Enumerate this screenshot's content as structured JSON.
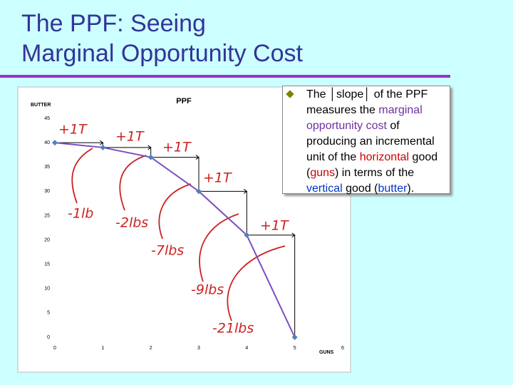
{
  "title_lines": [
    "The PPF: Seeing",
    "Marginal Opportunity Cost"
  ],
  "bullet": {
    "segments": [
      {
        "text": "The ",
        "color": "#000000"
      },
      {
        "text": "│slope│",
        "color": "#000000"
      },
      {
        "text": " of the PPF measures the ",
        "color": "#000000"
      },
      {
        "text": "marginal opportunity cost",
        "color": "#7030a0"
      },
      {
        "text": " of producing an incremental unit of the ",
        "color": "#000000"
      },
      {
        "text": "horizontal",
        "color": "#cc0000"
      },
      {
        "text": " good (",
        "color": "#000000"
      },
      {
        "text": "guns",
        "color": "#cc0000"
      },
      {
        "text": ") in terms of the ",
        "color": "#000000"
      },
      {
        "text": "vertical",
        "color": "#0033cc"
      },
      {
        "text": " good (",
        "color": "#000000"
      },
      {
        "text": "butter",
        "color": "#0033cc"
      },
      {
        "text": ").",
        "color": "#000000"
      }
    ]
  },
  "chart_data": {
    "type": "line",
    "title": "PPF",
    "xlabel": "GUNS",
    "ylabel": "BUTTER",
    "x": [
      0,
      1,
      2,
      3,
      4,
      5
    ],
    "series": [
      {
        "name": "PPF",
        "color": "#7b4fbf",
        "marker_color": "#4f81bd",
        "values": [
          40,
          39,
          37,
          30,
          21,
          0
        ]
      }
    ],
    "xlim": [
      0,
      6
    ],
    "xticks": [
      0,
      1,
      2,
      3,
      4,
      5,
      6
    ],
    "ylim": [
      0,
      45
    ],
    "yticks": [
      0,
      5,
      10,
      15,
      20,
      25,
      30,
      35,
      40,
      45
    ],
    "grid": false,
    "annotations": [
      "+1T",
      "+1T",
      "+1T",
      "+1T",
      "+1T",
      "-1lb",
      "-2lbs",
      "-7lbs",
      "-9lbs",
      "-21lbs"
    ]
  }
}
